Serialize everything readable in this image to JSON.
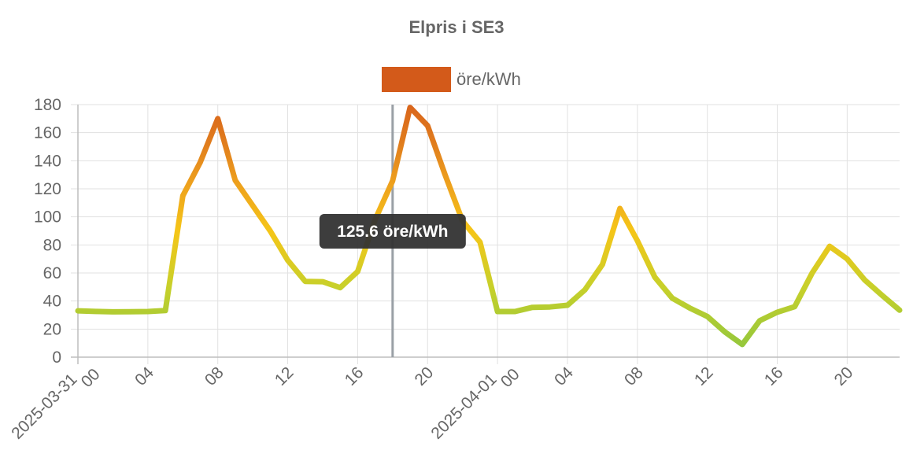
{
  "chart_data": {
    "type": "line",
    "title": "Elpris i SE3",
    "series": [
      {
        "name": "öre/kWh",
        "values": [
          33.0,
          32.6,
          32.3,
          32.4,
          32.5,
          33.2,
          115,
          139,
          170,
          126,
          108,
          90,
          69,
          54,
          53.8,
          49.5,
          61,
          98,
          125.6,
          178,
          165,
          130,
          97,
          82,
          32.5,
          32.5,
          35.5,
          35.8,
          37,
          48,
          66,
          106,
          83,
          57,
          42,
          35,
          29,
          18,
          9,
          26,
          32,
          36,
          60,
          79,
          70,
          55,
          44,
          33.5
        ]
      }
    ],
    "x_start": "2025-03-31 00:00",
    "x_step_hours": 1,
    "ylim": [
      0,
      180
    ],
    "yticks": [
      "0",
      "20",
      "40",
      "60",
      "80",
      "100",
      "120",
      "140",
      "160",
      "180"
    ],
    "xticks": [
      {
        "index": 0,
        "label": "2025-03-31",
        "sub": "00"
      },
      {
        "index": 4,
        "label": "04"
      },
      {
        "index": 8,
        "label": "08"
      },
      {
        "index": 12,
        "label": "12"
      },
      {
        "index": 16,
        "label": "16"
      },
      {
        "index": 20,
        "label": "20"
      },
      {
        "index": 24,
        "label": "2025-04-01",
        "sub": "00"
      },
      {
        "index": 28,
        "label": "04"
      },
      {
        "index": 32,
        "label": "08"
      },
      {
        "index": 36,
        "label": "12"
      },
      {
        "index": 40,
        "label": "16"
      },
      {
        "index": 44,
        "label": "20"
      }
    ],
    "grid": true,
    "legend": "top-center",
    "colors": {
      "legend_swatch": "#d35a1a",
      "low": "#9ccc2c",
      "mid": "#f5c518",
      "high": "#d9651c",
      "crosshair": "#9aa0a6",
      "tooltip_bg": "#333333"
    },
    "tooltip": {
      "index": 18,
      "text": "125.6 öre/kWh"
    }
  }
}
